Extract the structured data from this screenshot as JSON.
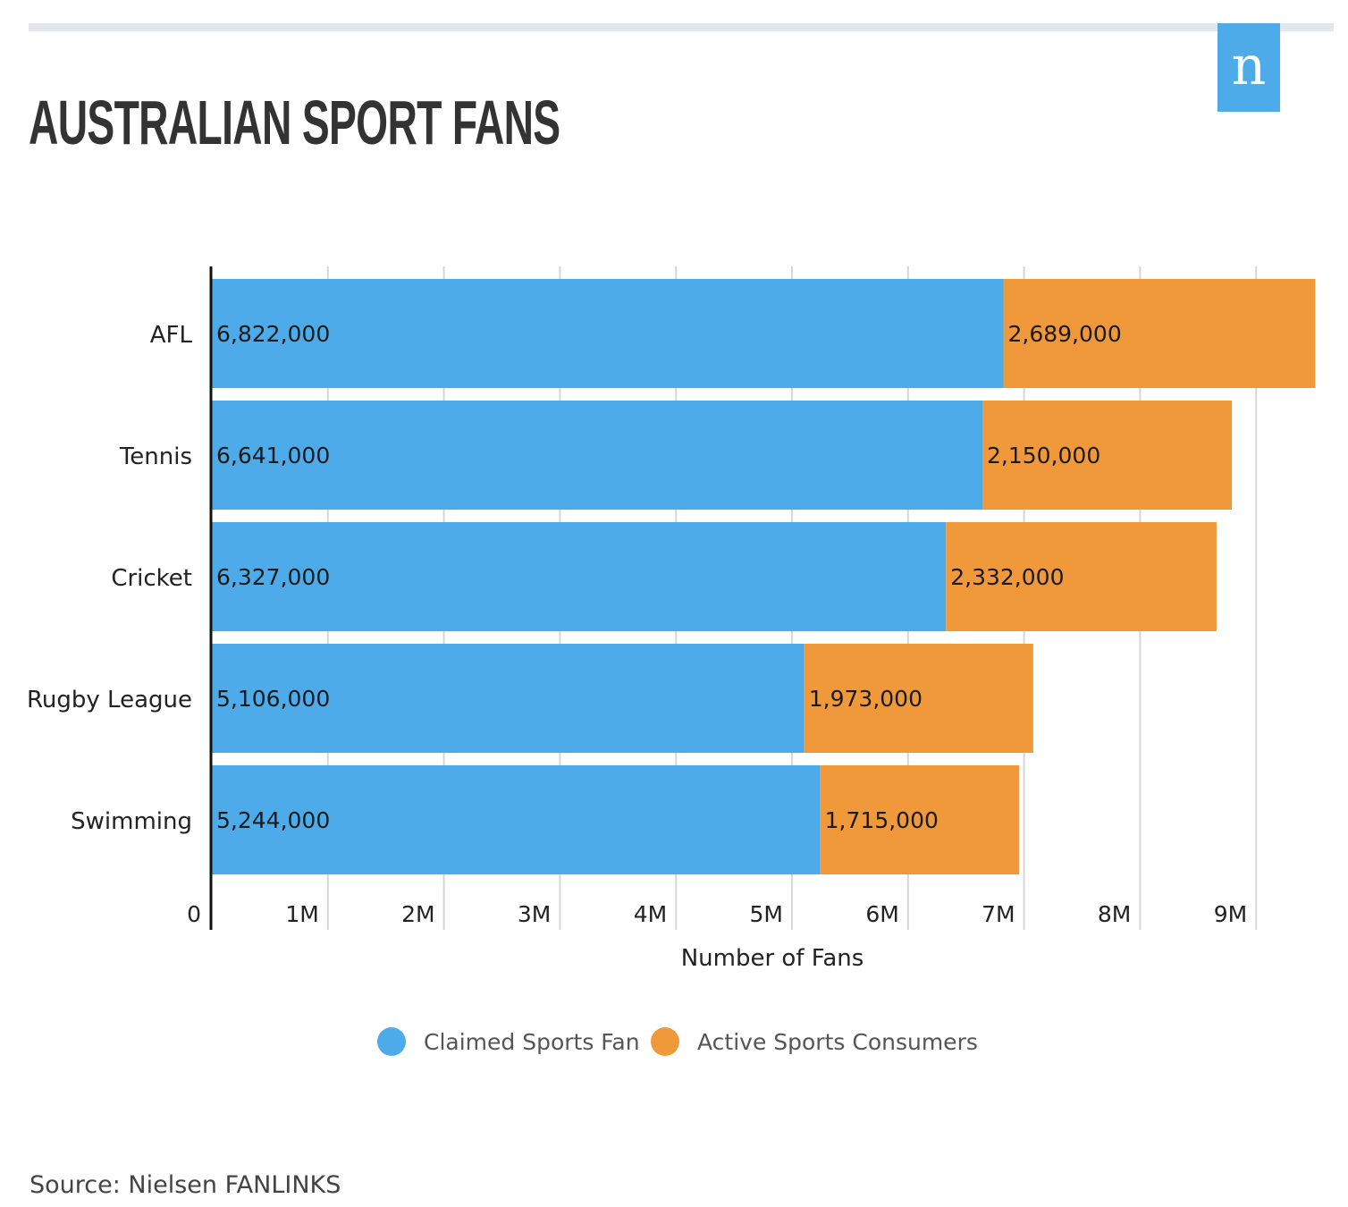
{
  "header": {
    "title": "AUSTRALIAN SPORT FANS",
    "logo_letter": "n"
  },
  "colors": {
    "claimed": "#4eabe9",
    "active": "#f0993a",
    "logo_bg": "#4eabe9",
    "grid": "#d6d6d6",
    "axis": "#111111"
  },
  "chart_data": {
    "type": "bar",
    "orientation": "horizontal",
    "stacked": true,
    "categories": [
      "AFL",
      "Tennis",
      "Cricket",
      "Rugby League",
      "Swimming"
    ],
    "series": [
      {
        "name": "Claimed Sports Fan",
        "values": [
          6822000,
          6641000,
          6327000,
          5106000,
          5244000
        ],
        "labels": [
          "6,822,000",
          "6,641,000",
          "6,327,000",
          "5,106,000",
          "5,244,000"
        ]
      },
      {
        "name": "Active Sports Consumers",
        "values": [
          2689000,
          2150000,
          2332000,
          1973000,
          1715000
        ],
        "labels": [
          "2,689,000",
          "2,150,000",
          "2,332,000",
          "1,973,000",
          "1,715,000"
        ]
      }
    ],
    "xlabel": "Number of Fans",
    "xlim": [
      0,
      9500000
    ],
    "ticks": [
      0,
      1000000,
      2000000,
      3000000,
      4000000,
      5000000,
      6000000,
      7000000,
      8000000,
      9000000
    ],
    "tick_labels": [
      "0",
      "1M",
      "2M",
      "3M",
      "4M",
      "5M",
      "6M",
      "7M",
      "8M",
      "9M"
    ],
    "grid": true,
    "legend_position": "bottom"
  },
  "footer": {
    "source": "Source: Nielsen FANLINKS"
  }
}
